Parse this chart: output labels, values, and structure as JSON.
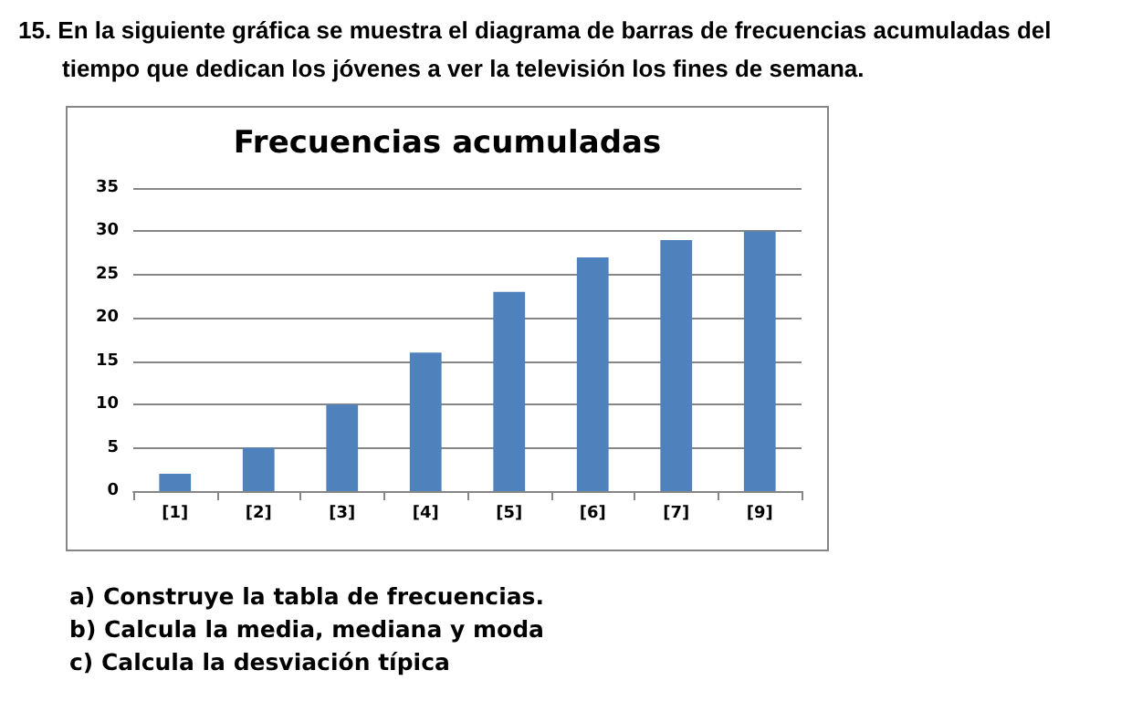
{
  "chart_data": {
    "type": "bar",
    "title": "Frecuencias acumuladas",
    "categories": [
      "[1]",
      "[2]",
      "[3]",
      "[4]",
      "[5]",
      "[6]",
      "[7]",
      "[9]"
    ],
    "values": [
      2,
      5,
      10,
      16,
      23,
      27,
      29,
      30
    ],
    "color": "#4f81bd",
    "ylim": [
      0,
      35
    ],
    "yticks": [
      0,
      5,
      10,
      15,
      20,
      25,
      30,
      35
    ],
    "grid": "y",
    "annotations": [
      "15. En la siguiente gráfica se muestra el diagrama de barras de frecuencias acumuladas del tiempo que dedican los jóvenes a ver la televisión los fines de semana.",
      "a)  Construye la tabla de frecuencias.",
      "b)  Calcula la media, mediana y moda",
      "c)  Calcula la desviación típica"
    ]
  }
}
